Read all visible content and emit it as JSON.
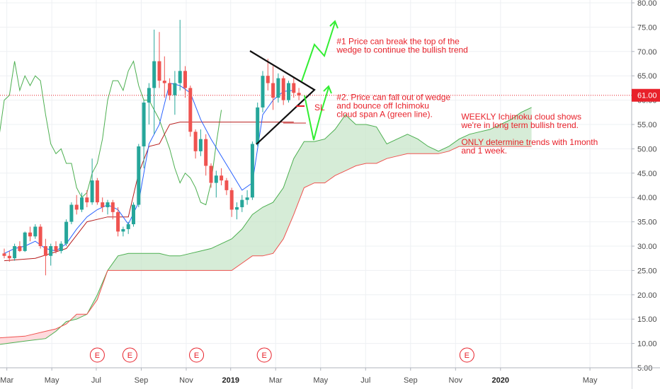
{
  "chart_data": {
    "type": "candlestick",
    "ylim": [
      5,
      80
    ],
    "y_ticks": [
      "80.00",
      "75.00",
      "70.00",
      "65.00",
      "60.00",
      "55.00",
      "50.00",
      "45.00",
      "40.00",
      "35.00",
      "30.00",
      "25.00",
      "20.00",
      "15.00",
      "10.00",
      "5.00"
    ],
    "y_tick_values": [
      80,
      75,
      70,
      65,
      60,
      55,
      50,
      45,
      40,
      35,
      30,
      25,
      20,
      15,
      10,
      5
    ],
    "x_ticks": [
      {
        "label": "Mar",
        "bold": false,
        "t": 0.5
      },
      {
        "label": "May",
        "bold": false,
        "t": 9.2
      },
      {
        "label": "Jul",
        "bold": false,
        "t": 17.8
      },
      {
        "label": "Sep",
        "bold": false,
        "t": 26.5
      },
      {
        "label": "Nov",
        "bold": false,
        "t": 35.2
      },
      {
        "label": "2019",
        "bold": true,
        "t": 43.8
      },
      {
        "label": "Mar",
        "bold": false,
        "t": 52.5
      },
      {
        "label": "May",
        "bold": false,
        "t": 61.2
      },
      {
        "label": "Jul",
        "bold": false,
        "t": 69.9
      },
      {
        "label": "Sep",
        "bold": false,
        "t": 78.6
      },
      {
        "label": "Nov",
        "bold": false,
        "t": 87.3
      },
      {
        "label": "2020",
        "bold": true,
        "t": 96
      },
      {
        "label": "May",
        "bold": false,
        "t": 113.3
      }
    ],
    "last_price": "61.00",
    "last_price_value": 61,
    "earnings_markers": [
      {
        "label": "E",
        "t": 18
      },
      {
        "label": "E",
        "t": 24.3
      },
      {
        "label": "E",
        "t": 37.2
      },
      {
        "label": "E",
        "t": 50.3
      },
      {
        "label": "E",
        "t": 89.5
      }
    ],
    "candles": [
      [
        28.5,
        29.5,
        27.5,
        28.0
      ],
      [
        28.0,
        29.0,
        26.8,
        27.5
      ],
      [
        27.5,
        30.5,
        27.0,
        30.0
      ],
      [
        30.0,
        31.0,
        28.8,
        29.0
      ],
      [
        29.0,
        33.0,
        28.8,
        32.8
      ],
      [
        32.8,
        34.0,
        31.0,
        32.0
      ],
      [
        32.0,
        34.5,
        31.5,
        34.0
      ],
      [
        34.0,
        34.5,
        29.5,
        30.0
      ],
      [
        30.0,
        31.5,
        24.0,
        28.0
      ],
      [
        28.0,
        30.5,
        26.0,
        30.0
      ],
      [
        30.0,
        31.0,
        28.5,
        29.0
      ],
      [
        29.0,
        31.0,
        28.5,
        30.5
      ],
      [
        30.5,
        35.5,
        30.0,
        35.0
      ],
      [
        35.0,
        39.0,
        34.5,
        38.5
      ],
      [
        38.5,
        40.5,
        36.5,
        37.5
      ],
      [
        37.5,
        41.0,
        37.0,
        40.0
      ],
      [
        40.0,
        41.5,
        38.0,
        39.0
      ],
      [
        39.0,
        48.0,
        38.5,
        43.5
      ],
      [
        43.5,
        44.0,
        38.5,
        39.0
      ],
      [
        39.0,
        40.0,
        37.0,
        38.0
      ],
      [
        38.0,
        39.5,
        36.5,
        39.0
      ],
      [
        39.0,
        39.5,
        35.5,
        37.0
      ],
      [
        37.0,
        38.0,
        32.0,
        33.0
      ],
      [
        33.0,
        34.0,
        32.0,
        33.5
      ],
      [
        33.5,
        35.0,
        32.5,
        34.5
      ],
      [
        34.5,
        39.0,
        34.0,
        38.5
      ],
      [
        38.5,
        51.0,
        38.0,
        50.5
      ],
      [
        50.5,
        60.0,
        46.0,
        59.5
      ],
      [
        59.5,
        63.5,
        55.0,
        62.5
      ],
      [
        62.5,
        74.5,
        53.0,
        68.0
      ],
      [
        68.0,
        74.0,
        62.5,
        64.0
      ],
      [
        64.0,
        69.0,
        60.5,
        63.5
      ],
      [
        63.5,
        64.5,
        60.0,
        61.0
      ],
      [
        61.0,
        66.0,
        57.0,
        63.5
      ],
      [
        63.5,
        76.5,
        62.0,
        66.0
      ],
      [
        66.0,
        67.0,
        60.5,
        62.5
      ],
      [
        62.5,
        63.0,
        52.5,
        53.5
      ],
      [
        53.5,
        54.0,
        48.0,
        49.5
      ],
      [
        49.5,
        54.0,
        48.5,
        52.0
      ],
      [
        52.0,
        53.0,
        44.5,
        46.5
      ],
      [
        46.5,
        47.0,
        42.0,
        43.0
      ],
      [
        43.0,
        45.5,
        40.0,
        44.5
      ],
      [
        44.5,
        46.0,
        42.5,
        43.5
      ],
      [
        43.5,
        44.0,
        40.5,
        41.5
      ],
      [
        41.5,
        42.0,
        36.0,
        37.5
      ],
      [
        37.5,
        39.0,
        35.5,
        38.0
      ],
      [
        38.0,
        40.5,
        37.0,
        39.5
      ],
      [
        39.5,
        41.5,
        38.5,
        40.0
      ],
      [
        40.0,
        51.5,
        39.5,
        51.0
      ],
      [
        51.0,
        59.5,
        50.5,
        58.5
      ],
      [
        58.5,
        66.0,
        57.5,
        65.0
      ],
      [
        65.0,
        68.5,
        62.0,
        63.5
      ],
      [
        63.5,
        67.0,
        58.0,
        60.5
      ],
      [
        60.5,
        65.5,
        59.5,
        64.5
      ],
      [
        64.5,
        65.0,
        59.0,
        60.0
      ],
      [
        60.0,
        64.0,
        59.5,
        63.5
      ],
      [
        63.5,
        64.5,
        60.5,
        61.5
      ],
      [
        61.5,
        62.5,
        60.0,
        61.0
      ]
    ],
    "conversion_line": [
      [
        0,
        28.5
      ],
      [
        2,
        29.5
      ],
      [
        4,
        30
      ],
      [
        6,
        31
      ],
      [
        8,
        29.5
      ],
      [
        10,
        29
      ],
      [
        12,
        30.5
      ],
      [
        14,
        33.5
      ],
      [
        16,
        36
      ],
      [
        18,
        37.5
      ],
      [
        20,
        38.5
      ],
      [
        22,
        37.5
      ],
      [
        24,
        34.5
      ],
      [
        26,
        39
      ],
      [
        28,
        51
      ],
      [
        30,
        55
      ],
      [
        32,
        63.5
      ],
      [
        34,
        63
      ],
      [
        36,
        61.5
      ],
      [
        38,
        56
      ],
      [
        40,
        52
      ],
      [
        42,
        48.5
      ],
      [
        44,
        45
      ],
      [
        46,
        41.5
      ],
      [
        48,
        43
      ],
      [
        50,
        57
      ],
      [
        52,
        60
      ],
      [
        54,
        61.8
      ],
      [
        56,
        62
      ]
    ],
    "base_line": [
      [
        0,
        27
      ],
      [
        6,
        27.5
      ],
      [
        12,
        29.5
      ],
      [
        16,
        35
      ],
      [
        20,
        36
      ],
      [
        24,
        36
      ],
      [
        26,
        45
      ],
      [
        28,
        50.5
      ],
      [
        30,
        51
      ],
      [
        32,
        55
      ],
      [
        34,
        55.5
      ],
      [
        36,
        55.5
      ],
      [
        40,
        55.5
      ],
      [
        44,
        55.5
      ],
      [
        48,
        55.5
      ],
      [
        50,
        55.5
      ],
      [
        52,
        55.5
      ],
      [
        54,
        55.5
      ],
      [
        56,
        55.5
      ]
    ],
    "lagging_span": [
      [
        -2,
        45
      ],
      [
        0,
        60
      ],
      [
        1,
        61
      ],
      [
        2,
        68
      ],
      [
        3,
        62
      ],
      [
        4,
        65
      ],
      [
        5,
        63
      ],
      [
        6,
        65
      ],
      [
        7,
        64
      ],
      [
        8,
        57
      ],
      [
        9,
        51
      ],
      [
        10,
        49
      ],
      [
        11,
        50
      ],
      [
        12,
        47
      ],
      [
        13,
        47
      ],
      [
        14,
        42
      ],
      [
        15,
        40
      ],
      [
        16,
        41
      ],
      [
        17,
        45
      ],
      [
        18,
        47
      ],
      [
        19,
        52
      ],
      [
        20,
        60
      ],
      [
        21,
        64
      ],
      [
        22,
        64
      ],
      [
        23,
        62
      ],
      [
        24,
        66
      ],
      [
        25,
        68
      ],
      [
        26,
        63
      ],
      [
        27,
        60
      ],
      [
        28,
        60
      ],
      [
        29,
        58
      ],
      [
        30,
        56
      ],
      [
        31,
        53
      ],
      [
        32,
        50
      ],
      [
        33,
        46
      ],
      [
        34,
        43
      ],
      [
        35,
        45
      ],
      [
        36,
        44
      ],
      [
        37,
        42
      ],
      [
        38,
        39
      ],
      [
        39,
        38.5
      ],
      [
        40,
        43
      ],
      [
        41,
        51
      ],
      [
        42,
        58
      ]
    ],
    "span_a": [
      [
        -3,
        9.5
      ],
      [
        4,
        10.5
      ],
      [
        8,
        11
      ],
      [
        10,
        12.5
      ],
      [
        12,
        14.5
      ],
      [
        14,
        15
      ],
      [
        16,
        16
      ],
      [
        18,
        20
      ],
      [
        20,
        25
      ],
      [
        22,
        28
      ],
      [
        24,
        28.5
      ],
      [
        26,
        28.5
      ],
      [
        28,
        28.5
      ],
      [
        30,
        28.5
      ],
      [
        32,
        28
      ],
      [
        34,
        28
      ],
      [
        36,
        28.5
      ],
      [
        38,
        29
      ],
      [
        40,
        29.5
      ],
      [
        42,
        30.5
      ],
      [
        44,
        31.5
      ],
      [
        46,
        33.5
      ],
      [
        48,
        36.5
      ],
      [
        50,
        38
      ],
      [
        52,
        39
      ],
      [
        54,
        42
      ],
      [
        56,
        48
      ],
      [
        58,
        51.5
      ],
      [
        60,
        51.5
      ],
      [
        62,
        52
      ],
      [
        64,
        54
      ],
      [
        66,
        57
      ],
      [
        68,
        55
      ],
      [
        70,
        55
      ],
      [
        72,
        54.5
      ],
      [
        74,
        51
      ],
      [
        76,
        52
      ],
      [
        78,
        53
      ],
      [
        80,
        52
      ],
      [
        82,
        50.5
      ],
      [
        84,
        49.5
      ],
      [
        86,
        50.5
      ],
      [
        88,
        52
      ],
      [
        90,
        53
      ],
      [
        92,
        53.5
      ],
      [
        94,
        54
      ],
      [
        96,
        55
      ],
      [
        98,
        56
      ],
      [
        100,
        57.5
      ],
      [
        102,
        58.5
      ]
    ],
    "span_b": [
      [
        -3,
        11
      ],
      [
        4,
        11.5
      ],
      [
        8,
        12.5
      ],
      [
        10,
        13
      ],
      [
        12,
        14
      ],
      [
        14,
        16
      ],
      [
        16,
        16
      ],
      [
        18,
        19
      ],
      [
        20,
        25
      ],
      [
        22,
        25
      ],
      [
        24,
        25
      ],
      [
        26,
        25
      ],
      [
        28,
        25
      ],
      [
        30,
        25
      ],
      [
        32,
        25
      ],
      [
        34,
        25
      ],
      [
        36,
        25
      ],
      [
        38,
        25
      ],
      [
        40,
        25
      ],
      [
        42,
        25
      ],
      [
        44,
        25
      ],
      [
        46,
        26.5
      ],
      [
        48,
        28
      ],
      [
        50,
        28
      ],
      [
        52,
        28.5
      ],
      [
        54,
        31.5
      ],
      [
        56,
        36.5
      ],
      [
        58,
        42
      ],
      [
        60,
        43
      ],
      [
        62,
        43
      ],
      [
        64,
        44.5
      ],
      [
        66,
        45.5
      ],
      [
        68,
        46.5
      ],
      [
        70,
        47
      ],
      [
        72,
        47
      ],
      [
        74,
        48
      ],
      [
        76,
        48.5
      ],
      [
        78,
        49
      ],
      [
        80,
        49
      ],
      [
        82,
        49
      ],
      [
        84,
        49
      ],
      [
        86,
        49.5
      ],
      [
        88,
        50.5
      ],
      [
        90,
        50.5
      ],
      [
        92,
        50.5
      ],
      [
        94,
        50.5
      ],
      [
        96,
        50.5
      ],
      [
        98,
        50.5
      ],
      [
        100,
        50.5
      ],
      [
        102,
        50.5
      ]
    ],
    "annotations": [
      {
        "lines": [
          "#1 Price can break the top of the",
          "wedge to continue the bullish trend"
        ],
        "t": 64.3,
        "y": 71.5
      },
      {
        "lines": [
          "#2. Price can fall out of wedge",
          "and bounce off Ichimoku",
          "cloud span A (green line)."
        ],
        "t": 64.3,
        "y": 60.0
      },
      {
        "lines": [
          "WEEKLY Ichimoku cloud shows",
          "we're in long term bullish trend.",
          "",
          "ONLY determine trends with 1month",
          "and 1 week."
        ],
        "t": 88.4,
        "y": 56.0
      }
    ],
    "sl_label": "SL",
    "colors": {
      "bull": "#26a69a",
      "bear": "#ef5350",
      "conversion": "#2962ff",
      "base": "#b71c1c",
      "lagging": "#4caf50",
      "span_a": "#4caf50",
      "span_b": "#ef5350",
      "cloud_bull": "#c8e6c9",
      "cloud_bear": "#ffcdd2",
      "arrow": "#33ee33",
      "wedge": "#111111",
      "price_line": "#e8212a",
      "annotation": "#e8212a"
    }
  }
}
